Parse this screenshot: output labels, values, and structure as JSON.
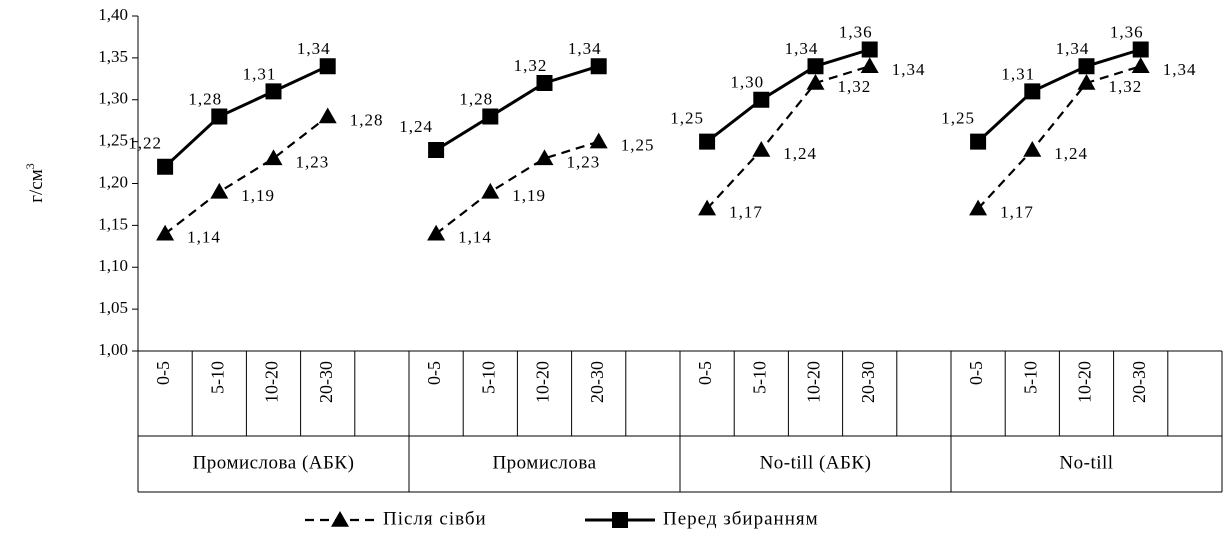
{
  "chart_data": {
    "type": "line",
    "ylabel": "г/см",
    "ylabel_sup": "3",
    "ylim": [
      1.0,
      1.4
    ],
    "yticks": [
      "1,00",
      "1,05",
      "1,10",
      "1,15",
      "1,20",
      "1,25",
      "1,30",
      "1,35",
      "1,40"
    ],
    "grid": false,
    "legend_position": "bottom",
    "groups": [
      {
        "name": "Промислова (АБК)",
        "categories": [
          "0-5",
          "5-10",
          "10-20",
          "20-30"
        ],
        "series": [
          {
            "name": "Після сівби",
            "values": [
              1.14,
              1.19,
              1.23,
              1.28
            ],
            "labels": [
              "1,14",
              "1,19",
              "1,23",
              "1,28"
            ]
          },
          {
            "name": "Перед збиранням",
            "values": [
              1.22,
              1.28,
              1.31,
              1.34
            ],
            "labels": [
              "1,22",
              "1,28",
              "1,31",
              "1,34"
            ]
          }
        ]
      },
      {
        "name": "Промислова",
        "categories": [
          "0-5",
          "5-10",
          "10-20",
          "20-30"
        ],
        "series": [
          {
            "name": "Після сівби",
            "values": [
              1.14,
              1.19,
              1.23,
              1.25
            ],
            "labels": [
              "1,14",
              "1,19",
              "1,23",
              "1,25"
            ]
          },
          {
            "name": "Перед збиранням",
            "values": [
              1.24,
              1.28,
              1.32,
              1.34
            ],
            "labels": [
              "1,24",
              "1,28",
              "1,32",
              "1,34"
            ]
          }
        ]
      },
      {
        "name": "No-till (АБК)",
        "categories": [
          "0-5",
          "5-10",
          "10-20",
          "20-30"
        ],
        "series": [
          {
            "name": "Після сівби",
            "values": [
              1.17,
              1.24,
              1.32,
              1.34
            ],
            "labels": [
              "1,17",
              "1,24",
              "1,32",
              "1,34"
            ]
          },
          {
            "name": "Перед збиранням",
            "values": [
              1.25,
              1.3,
              1.34,
              1.36
            ],
            "labels": [
              "1,25",
              "1,30",
              "1,34",
              "1,36"
            ]
          }
        ]
      },
      {
        "name": "No-till",
        "categories": [
          "0-5",
          "5-10",
          "10-20",
          "20-30"
        ],
        "series": [
          {
            "name": "Після сівби",
            "values": [
              1.17,
              1.24,
              1.32,
              1.34
            ],
            "labels": [
              "1,17",
              "1,24",
              "1,32",
              "1,34"
            ]
          },
          {
            "name": "Перед збиранням",
            "values": [
              1.25,
              1.31,
              1.34,
              1.36
            ],
            "labels": [
              "1,25",
              "1,31",
              "1,34",
              "1,36"
            ]
          }
        ]
      }
    ],
    "legend": [
      {
        "name": "Після сівби",
        "style": "dashed",
        "marker": "triangle"
      },
      {
        "name": "Перед збиранням",
        "style": "solid",
        "marker": "square"
      }
    ],
    "colors": {
      "line": "#000000",
      "axis": "#000000",
      "background": "#ffffff"
    }
  }
}
